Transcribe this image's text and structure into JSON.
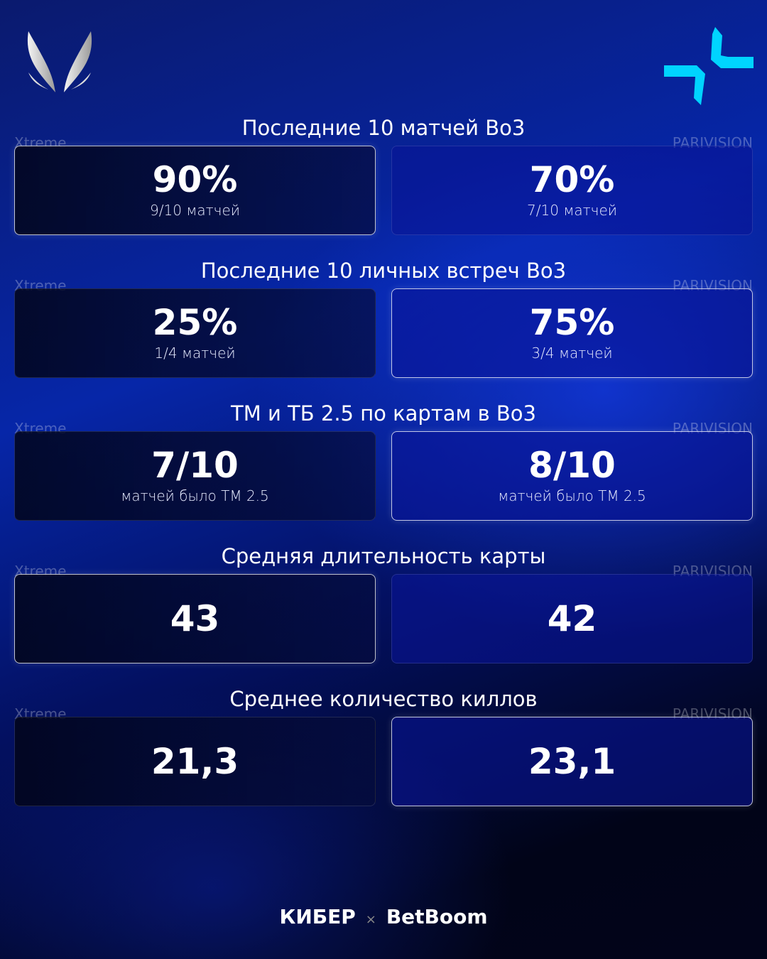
{
  "teams": {
    "left": "Xtreme",
    "right": "PARIVISION"
  },
  "colors": {
    "accent": "#00d4ff",
    "left_logo": "#d8d8d8"
  },
  "sections": [
    {
      "title": "Последние 10 матчей Bo3",
      "left": {
        "value": "90%",
        "sub": "9/10 матчей"
      },
      "right": {
        "value": "70%",
        "sub": "7/10 матчей"
      },
      "winner": "left"
    },
    {
      "title": "Последние 10 личных встреч Bo3",
      "left": {
        "value": "25%",
        "sub": "1/4 матчей"
      },
      "right": {
        "value": "75%",
        "sub": "3/4 матчей"
      },
      "winner": "right"
    },
    {
      "title": "ТМ и ТБ 2.5 по картам в Bo3",
      "left": {
        "value": "7/10",
        "sub": "матчей было ТМ 2.5"
      },
      "right": {
        "value": "8/10",
        "sub": "матчей было ТМ 2.5"
      },
      "winner": "right"
    },
    {
      "title": "Средняя длительность карты",
      "left": {
        "value": "43",
        "sub": ""
      },
      "right": {
        "value": "42",
        "sub": ""
      },
      "winner": "left"
    },
    {
      "title": "Среднее количество киллов",
      "left": {
        "value": "21,3",
        "sub": ""
      },
      "right": {
        "value": "23,1",
        "sub": ""
      },
      "winner": "right"
    }
  ],
  "footer": {
    "brand1": "КИБЕР",
    "sep": "×",
    "brand2": "BetBoom"
  }
}
